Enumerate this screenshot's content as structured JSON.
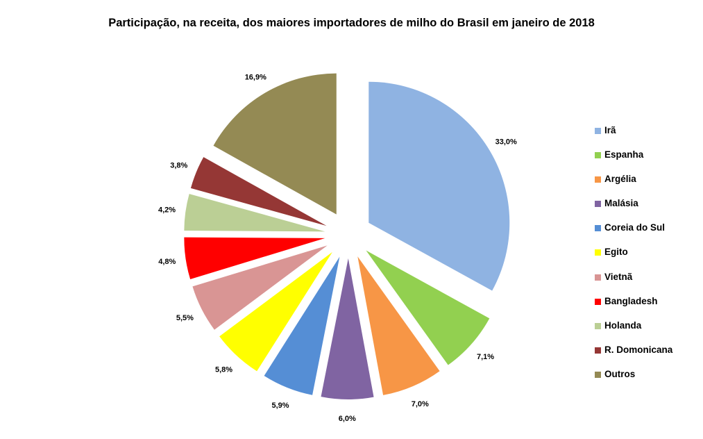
{
  "chart_data": {
    "type": "pie",
    "title": "Participação, na receita, dos maiores importadores de milho do Brasil em janeiro de 2018",
    "categories": [
      "Irã",
      "Espanha",
      "Argélia",
      "Malásia",
      "Coreia do Sul",
      "Egito",
      "Vietnã",
      "Bangladesh",
      "Holanda",
      "R. Domonicana",
      "Outros"
    ],
    "values": [
      33.0,
      7.1,
      7.0,
      6.0,
      5.9,
      5.8,
      5.5,
      4.8,
      4.2,
      3.8,
      16.9
    ],
    "data_labels": [
      "33,0%",
      "7,1%",
      "7,0%",
      "6,0%",
      "5,9%",
      "5,8%",
      "5,5%",
      "4,8%",
      "4,2%",
      "3,8%",
      "16,9%"
    ],
    "colors": [
      "#8fb3e2",
      "#92d050",
      "#f79646",
      "#8064a2",
      "#558ed5",
      "#ffff00",
      "#d99594",
      "#ff0000",
      "#bbcf95",
      "#953735",
      "#948a54"
    ],
    "exploded": true,
    "legend_position": "right"
  }
}
